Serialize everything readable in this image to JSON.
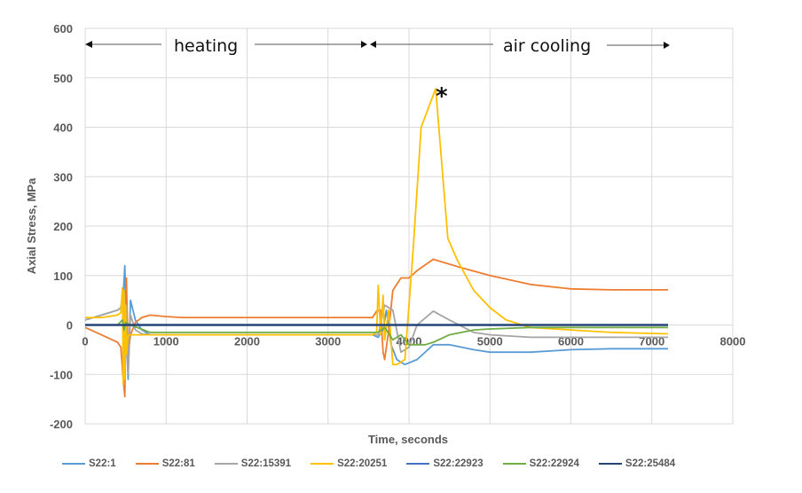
{
  "chart_data": {
    "type": "line",
    "title": "",
    "xlabel": "Time, seconds",
    "ylabel": "Axial Stress, MPa",
    "xlim": [
      0,
      8000
    ],
    "ylim": [
      -200,
      600
    ],
    "xticks": [
      0,
      1000,
      2000,
      3000,
      4000,
      5000,
      6000,
      7000,
      8000
    ],
    "yticks": [
      -200,
      -100,
      0,
      100,
      200,
      300,
      400,
      500,
      600
    ],
    "grid": true,
    "legend_position": "bottom",
    "annotations": [
      {
        "text": "heating",
        "x_range": [
          0,
          3550
        ],
        "y": 560,
        "type": "double-arrow"
      },
      {
        "text": "air cooling",
        "x_range": [
          3550,
          7200
        ],
        "y": 560,
        "type": "double-arrow"
      },
      {
        "text": "*",
        "x": 4330,
        "y": 460
      }
    ],
    "series": [
      {
        "name": "S22:1",
        "color": "#5b9bd5",
        "x": [
          0,
          200,
          400,
          440,
          470,
          490,
          510,
          530,
          560,
          620,
          700,
          800,
          1000,
          2000,
          3000,
          3550,
          3620,
          3680,
          3720,
          3780,
          3850,
          3950,
          4100,
          4300,
          4500,
          4800,
          5000,
          5500,
          6000,
          6500,
          7200
        ],
        "y": [
          10,
          20,
          30,
          35,
          60,
          120,
          -20,
          -110,
          50,
          10,
          -10,
          -20,
          -20,
          -20,
          -20,
          -20,
          -25,
          -10,
          30,
          -40,
          -70,
          -80,
          -70,
          -40,
          -40,
          -50,
          -55,
          -55,
          -50,
          -48,
          -48
        ]
      },
      {
        "name": "S22:81",
        "color": "#ed7d31",
        "x": [
          0,
          200,
          400,
          440,
          470,
          490,
          510,
          530,
          560,
          620,
          700,
          800,
          1000,
          1200,
          2000,
          3000,
          3550,
          3600,
          3650,
          3680,
          3700,
          3750,
          3800,
          3900,
          4000,
          4100,
          4300,
          4600,
          5000,
          5500,
          6000,
          6500,
          7200
        ],
        "y": [
          -5,
          -20,
          -35,
          -45,
          -110,
          -145,
          95,
          -60,
          -20,
          5,
          15,
          20,
          17,
          15,
          15,
          15,
          15,
          28,
          30,
          -55,
          -70,
          -10,
          70,
          95,
          95,
          110,
          133,
          118,
          100,
          82,
          73,
          71,
          71
        ]
      },
      {
        "name": "S22:15391",
        "color": "#a5a5a5",
        "x": [
          0,
          200,
          400,
          440,
          470,
          490,
          510,
          530,
          560,
          620,
          700,
          800,
          1000,
          2000,
          3000,
          3550,
          3620,
          3700,
          3800,
          3900,
          4000,
          4100,
          4300,
          4500,
          4800,
          5000,
          5500,
          6000,
          6500,
          7200
        ],
        "y": [
          10,
          20,
          30,
          35,
          70,
          -90,
          40,
          -100,
          20,
          -10,
          -18,
          -20,
          -20,
          -20,
          -20,
          -20,
          -20,
          40,
          30,
          -55,
          -45,
          0,
          28,
          10,
          -15,
          -20,
          -25,
          -25,
          -25,
          -25
        ]
      },
      {
        "name": "S22:20251",
        "color": "#ffc000",
        "x": [
          0,
          200,
          400,
          440,
          460,
          470,
          480,
          490,
          500,
          510,
          530,
          560,
          620,
          700,
          800,
          1000,
          2000,
          3000,
          3550,
          3600,
          3620,
          3650,
          3680,
          3700,
          3750,
          3800,
          3850,
          3950,
          4050,
          4150,
          4330,
          4480,
          4600,
          4800,
          5000,
          5200,
          5500,
          6000,
          6500,
          7200
        ],
        "y": [
          15,
          15,
          20,
          25,
          75,
          -120,
          70,
          -110,
          40,
          -60,
          -20,
          -20,
          -20,
          -20,
          -20,
          -20,
          -20,
          -20,
          -20,
          -15,
          80,
          -20,
          60,
          -30,
          30,
          -80,
          -80,
          -70,
          150,
          400,
          478,
          175,
          130,
          70,
          35,
          10,
          -5,
          -10,
          -15,
          -18
        ]
      },
      {
        "name": "S22:22923",
        "color": "#4472c4",
        "x": [
          0,
          7200
        ],
        "y": [
          0,
          0
        ]
      },
      {
        "name": "S22:22924",
        "color": "#70ad47",
        "x": [
          0,
          400,
          460,
          480,
          500,
          560,
          800,
          2000,
          3000,
          3550,
          3620,
          3700,
          3800,
          3900,
          4000,
          4200,
          4300,
          4500,
          4800,
          5000,
          5500,
          6000,
          6500,
          7200
        ],
        "y": [
          0,
          0,
          10,
          -10,
          5,
          0,
          -15,
          -15,
          -15,
          -15,
          -15,
          -5,
          -30,
          -20,
          -40,
          -40,
          -35,
          -20,
          -10,
          -8,
          -5,
          -5,
          -5,
          -5
        ]
      },
      {
        "name": "S22:25484",
        "color": "#264478",
        "x": [
          0,
          7200
        ],
        "y": [
          0,
          0
        ]
      }
    ]
  },
  "legend": {
    "items": [
      {
        "label": "S22:1",
        "color": "#5b9bd5"
      },
      {
        "label": "S22:81",
        "color": "#ed7d31"
      },
      {
        "label": "S22:15391",
        "color": "#a5a5a5"
      },
      {
        "label": "S22:20251",
        "color": "#ffc000"
      },
      {
        "label": "S22:22923",
        "color": "#4472c4"
      },
      {
        "label": "S22:22924",
        "color": "#70ad47"
      },
      {
        "label": "S22:25484",
        "color": "#264478"
      }
    ]
  },
  "labels": {
    "heating": "heating",
    "air_cooling": "air cooling",
    "asterisk": "*",
    "xlabel": "Time, seconds",
    "ylabel": "Axial Stress, MPa"
  }
}
